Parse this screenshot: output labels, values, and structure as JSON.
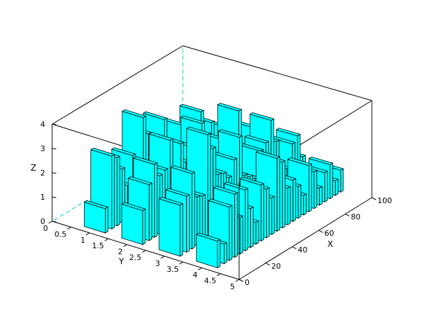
{
  "chart_data": {
    "type": "bar3d",
    "xlabel": "X",
    "ylabel": "Y",
    "zlabel": "Z",
    "xlim": [
      0,
      100
    ],
    "ylim": [
      0,
      5
    ],
    "zlim": [
      0,
      4
    ],
    "x_ticks": [
      "0",
      "20",
      "40",
      "60",
      "80",
      "100"
    ],
    "y_ticks": [
      "0",
      "0.5",
      "1",
      "1.5",
      "2",
      "2.5",
      "3",
      "3.5",
      "4",
      "4.5",
      "5"
    ],
    "z_ticks": [
      "0",
      "1",
      "2",
      "3",
      "4"
    ],
    "bar_color": "#00ffff",
    "edge_color": "#000000",
    "hidden_axis_color": "#00cccc",
    "series": [
      {
        "y": 1,
        "x": [
          5,
          10,
          14,
          18,
          22,
          26,
          30,
          34,
          38,
          42,
          46,
          50,
          54,
          58,
          62,
          66,
          70,
          74,
          78,
          82,
          86,
          90,
          94,
          98
        ],
        "z": [
          1.0,
          3.0,
          2.8,
          2.2,
          1.4,
          2.5,
          1.8,
          3.8,
          3.0,
          0.9,
          2.2,
          3.2,
          1.2,
          1.6,
          0.6,
          2.4,
          0.8,
          1.7,
          2.6,
          0.5,
          1.9,
          1.1,
          0.7,
          1.3
        ]
      },
      {
        "y": 2,
        "x": [
          5,
          10,
          14,
          18,
          22,
          26,
          30,
          34,
          38,
          42,
          46,
          50,
          54,
          58,
          62,
          66,
          70,
          74,
          78,
          82,
          86,
          90,
          94,
          98
        ],
        "z": [
          1.4,
          2.3,
          3.0,
          2.4,
          2.5,
          3.6,
          2.2,
          3.2,
          2.3,
          1.4,
          2.6,
          3.5,
          2.2,
          1.5,
          0.8,
          2.3,
          1.2,
          0.9,
          3.1,
          1.1,
          0.6,
          2.0,
          1.2,
          0.8
        ]
      },
      {
        "y": 3,
        "x": [
          5,
          10,
          14,
          18,
          22,
          26,
          30,
          34,
          38,
          42,
          46,
          50,
          54,
          58,
          62,
          66,
          70,
          74,
          78,
          82,
          86,
          90,
          94,
          98
        ],
        "z": [
          2.1,
          2.3,
          3.1,
          2.0,
          1.9,
          4.3,
          3.6,
          2.4,
          2.3,
          2.0,
          2.6,
          3.4,
          1.7,
          1.5,
          1.3,
          2.3,
          2.5,
          3.3,
          2.3,
          1.3,
          0.9,
          1.8,
          2.0,
          1.0
        ]
      },
      {
        "y": 4,
        "x": [
          5,
          10,
          14,
          18,
          22,
          26,
          30,
          34,
          38,
          42,
          46,
          50,
          54,
          58,
          62,
          66,
          70,
          74,
          78,
          82,
          86,
          90,
          94,
          98
        ],
        "z": [
          1.1,
          0.8,
          2.2,
          2.6,
          1.5,
          2.5,
          1.6,
          0.9,
          2.3,
          2.0,
          1.5,
          3.0,
          2.7,
          1.5,
          1.7,
          1.3,
          0.8,
          1.9,
          1.5,
          0.7,
          1.2,
          1.4,
          0.6,
          0.9
        ]
      }
    ]
  }
}
